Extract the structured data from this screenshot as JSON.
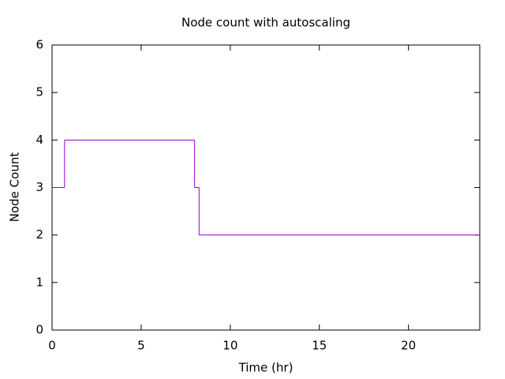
{
  "chart_data": {
    "type": "step",
    "title": "Node count with autoscaling",
    "x_label": "Time (hr)",
    "y_label": "Node Count",
    "x": [
      0,
      0.7,
      8.0,
      8.25
    ],
    "series": [
      {
        "name": "Node Count",
        "color": "#9400d3",
        "values": [
          3,
          4,
          3,
          2
        ]
      }
    ],
    "xlim": [
      0,
      24
    ],
    "ylim": [
      0,
      6
    ],
    "xticks": [
      0,
      5,
      10,
      15,
      20
    ],
    "yticks": [
      0,
      1,
      2,
      3,
      4,
      5,
      6
    ]
  }
}
